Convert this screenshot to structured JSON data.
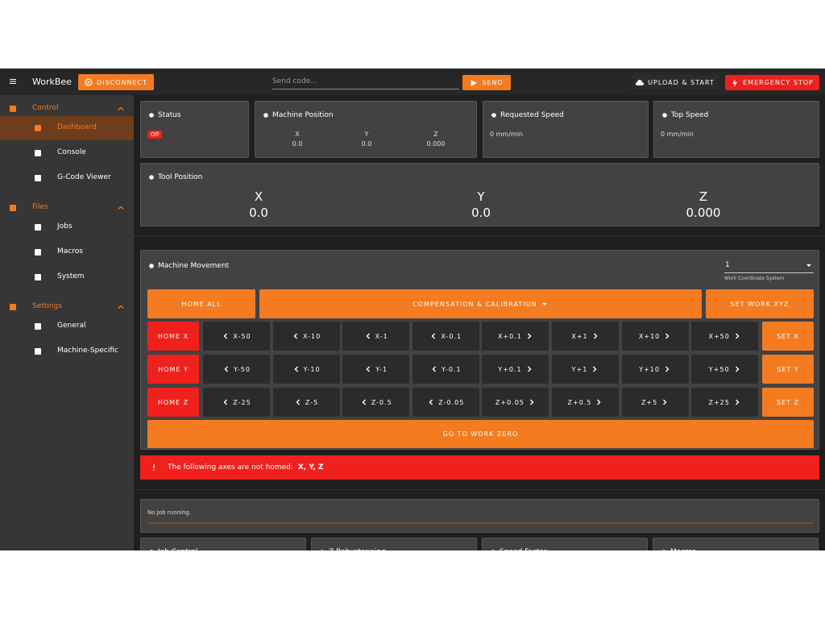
{
  "toolbar": {
    "app_name": "WorkBee",
    "disconnect": "DISCONNECT",
    "send_placeholder": "Send code...",
    "send": "SEND",
    "upload_start": "UPLOAD & START",
    "emergency_stop": "EMERGENCY STOP"
  },
  "sidebar": {
    "sections": [
      {
        "label": "Control",
        "items": [
          "Dashboard",
          "Console",
          "G-Code Viewer"
        ]
      },
      {
        "label": "Files",
        "items": [
          "Jobs",
          "Macros",
          "System"
        ]
      },
      {
        "label": "Settings",
        "items": [
          "General",
          "Machine-Specific"
        ]
      }
    ]
  },
  "status": {
    "title": "Status",
    "state": "Off"
  },
  "machine_position": {
    "title": "Machine Position",
    "axes": [
      "X",
      "Y",
      "Z"
    ],
    "values": [
      "0.0",
      "0.0",
      "0.000"
    ]
  },
  "requested_speed": {
    "title": "Requested Speed",
    "value": "0 mm/min"
  },
  "top_speed": {
    "title": "Top Speed",
    "value": "0 mm/min"
  },
  "tool_position": {
    "title": "Tool Position",
    "axes": [
      "X",
      "Y",
      "Z"
    ],
    "values": [
      "0.0",
      "0.0",
      "0.000"
    ]
  },
  "machine_movement": {
    "title": "Machine Movement",
    "wcs_value": "1",
    "wcs_label": "Work Coordinate System",
    "home_all": "HOME ALL",
    "compensation": "COMPENSATION & CALIBRATION",
    "set_work": "SET WORK XYZ",
    "rows": [
      {
        "home": "HOME X",
        "steps": [
          "X-50",
          "X-10",
          "X-1",
          "X-0.1",
          "X+0.1",
          "X+1",
          "X+10",
          "X+50"
        ],
        "set": "SET X"
      },
      {
        "home": "HOME Y",
        "steps": [
          "Y-50",
          "Y-10",
          "Y-1",
          "Y-0.1",
          "Y+0.1",
          "Y+1",
          "Y+10",
          "Y+50"
        ],
        "set": "SET Y"
      },
      {
        "home": "HOME Z",
        "steps": [
          "Z-25",
          "Z-5",
          "Z-0.5",
          "Z-0.05",
          "Z+0.05",
          "Z+0.5",
          "Z+5",
          "Z+25"
        ],
        "set": "SET Z"
      }
    ],
    "go_to_zero": "GO TO WORK ZERO"
  },
  "alert": {
    "text": "The following axes are not homed:",
    "axes": "X, Y, Z"
  },
  "job": {
    "status": "No Job running."
  },
  "bottom_cards": [
    "Job Control",
    "Z Babystepping",
    "Speed Factor",
    "Macros"
  ]
}
